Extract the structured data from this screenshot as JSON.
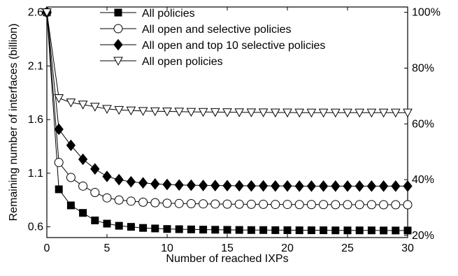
{
  "chart_data": {
    "type": "line",
    "title": "",
    "xlabel": "Number of reached IXPs",
    "ylabel": "Remaining number of interfaces (billion)",
    "xlim": [
      0,
      30
    ],
    "ylim": [
      0.5,
      2.65
    ],
    "xticks": [
      0,
      5,
      10,
      15,
      20,
      25,
      30
    ],
    "xtick_labels": [
      "0",
      "5",
      "10",
      "15",
      "20",
      "25",
      "30"
    ],
    "yticks": [
      0.6,
      1.1,
      1.6,
      2.1,
      2.6
    ],
    "ytick_labels": [
      "0.6",
      "1.1",
      "1.6",
      "2.1",
      "2.6"
    ],
    "y2ticks": [
      0.52,
      1.04,
      1.56,
      2.08,
      2.6
    ],
    "y2tick_labels": [
      "20%",
      "40%",
      "60%",
      "80%",
      "100%"
    ],
    "grid": false,
    "legend_position": "top",
    "x": [
      0,
      1,
      2,
      3,
      4,
      5,
      6,
      7,
      8,
      9,
      10,
      11,
      12,
      13,
      14,
      15,
      16,
      17,
      18,
      19,
      20,
      21,
      22,
      23,
      24,
      25,
      26,
      27,
      28,
      29,
      30
    ],
    "series": [
      {
        "name": "All policies",
        "marker": "square",
        "values": [
          2.6,
          0.95,
          0.8,
          0.73,
          0.66,
          0.63,
          0.61,
          0.6,
          0.59,
          0.585,
          0.58,
          0.578,
          0.576,
          0.574,
          0.573,
          0.572,
          0.571,
          0.57,
          0.57,
          0.569,
          0.569,
          0.568,
          0.568,
          0.568,
          0.567,
          0.567,
          0.567,
          0.567,
          0.566,
          0.566,
          0.566
        ]
      },
      {
        "name": "All open and selective policies",
        "marker": "circle",
        "values": [
          2.6,
          1.2,
          1.06,
          0.98,
          0.92,
          0.87,
          0.85,
          0.84,
          0.83,
          0.825,
          0.82,
          0.818,
          0.816,
          0.814,
          0.813,
          0.812,
          0.811,
          0.81,
          0.81,
          0.809,
          0.809,
          0.808,
          0.808,
          0.808,
          0.807,
          0.807,
          0.807,
          0.807,
          0.806,
          0.806,
          0.806
        ]
      },
      {
        "name": "All open and top 10 selective policies",
        "marker": "diamond",
        "values": [
          2.6,
          1.51,
          1.36,
          1.23,
          1.14,
          1.07,
          1.04,
          1.02,
          1.01,
          1.0,
          0.995,
          0.99,
          0.988,
          0.986,
          0.985,
          0.984,
          0.983,
          0.982,
          0.982,
          0.981,
          0.981,
          0.98,
          0.98,
          0.98,
          0.98,
          0.98,
          0.98,
          0.98,
          0.98,
          0.98,
          0.98
        ]
      },
      {
        "name": "All open policies",
        "marker": "triangle-down",
        "values": [
          2.6,
          1.8,
          1.76,
          1.74,
          1.72,
          1.7,
          1.69,
          1.685,
          1.68,
          1.678,
          1.676,
          1.674,
          1.672,
          1.671,
          1.67,
          1.669,
          1.668,
          1.667,
          1.667,
          1.666,
          1.666,
          1.665,
          1.665,
          1.665,
          1.665,
          1.665,
          1.665,
          1.665,
          1.665,
          1.665,
          1.665
        ]
      }
    ]
  }
}
